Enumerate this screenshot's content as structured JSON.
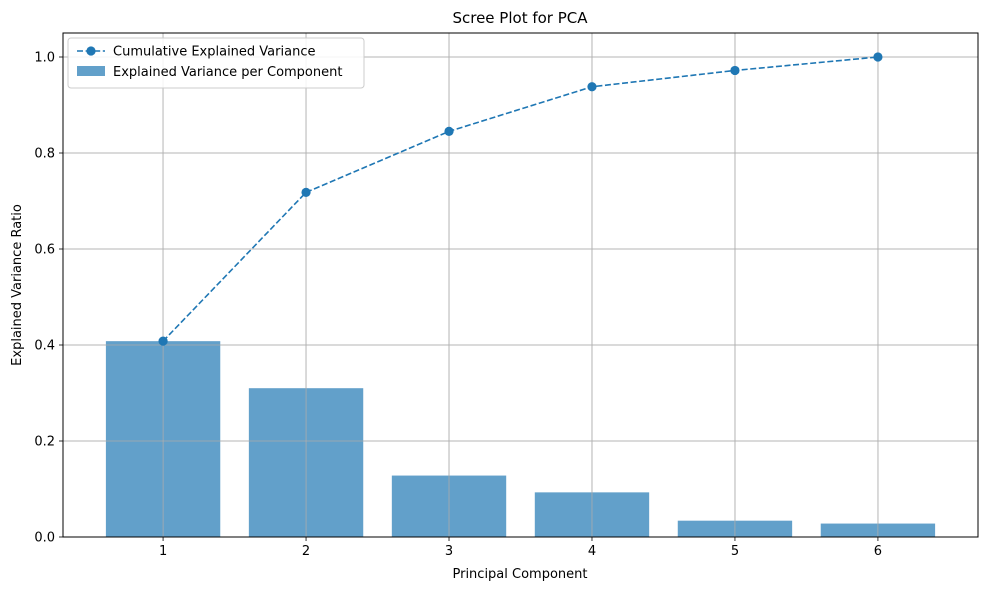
{
  "chart_data": {
    "type": "bar",
    "title": "Scree Plot for PCA",
    "xlabel": "Principal Component",
    "ylabel": "Explained Variance Ratio",
    "categories": [
      "1",
      "2",
      "3",
      "4",
      "5",
      "6"
    ],
    "x": [
      1,
      2,
      3,
      4,
      5,
      6
    ],
    "xlim": [
      0.3,
      6.7
    ],
    "ylim": [
      0,
      1.05
    ],
    "yticks": [
      0.0,
      0.2,
      0.4,
      0.6,
      0.8,
      1.0
    ],
    "ytick_labels": [
      "0.0",
      "0.2",
      "0.4",
      "0.6",
      "0.8",
      "1.0"
    ],
    "grid": true,
    "legend_position": "top-left",
    "series": [
      {
        "name": "Explained Variance per Component",
        "type": "bar",
        "values": [
          0.408,
          0.31,
          0.128,
          0.093,
          0.034,
          0.028
        ],
        "color": "#1f77b4",
        "opacity": 0.7
      },
      {
        "name": "Cumulative Explained Variance",
        "type": "line",
        "style": "dashed",
        "marker": "circle",
        "values": [
          0.408,
          0.718,
          0.845,
          0.938,
          0.972,
          1.0
        ],
        "color": "#1f77b4"
      }
    ]
  }
}
